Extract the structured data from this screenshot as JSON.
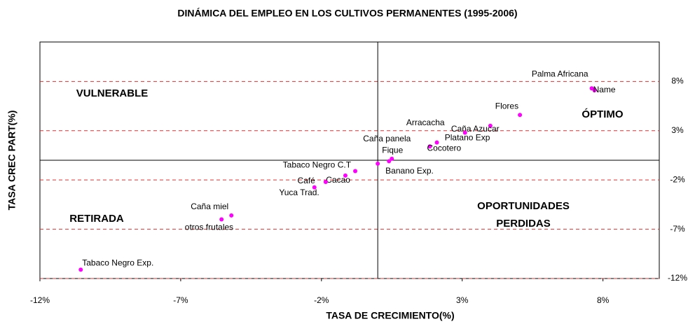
{
  "chart_data": {
    "type": "scatter",
    "title": "DINÁMICA DEL EMPLEO EN LOS CULTIVOS PERMANENTES (1995-2006)",
    "x_label": "TASA DE CRECIMIENTO(%)",
    "y_label": "TASA CREC PART(%)",
    "color": "#ff00ff",
    "grid_color": "#e03030",
    "point_labels": [
      "Palma Africana",
      "Name",
      "Flores",
      "Arracacha",
      "Caña Azucar",
      "Platano Exp",
      "Cocotero",
      "Caña panela",
      "Fique",
      "Banano Exp.",
      "Tabaco Negro C.T",
      "Cacao",
      "Café",
      "Yuca Trad.",
      "Caña miel",
      "otros frutales",
      "Tabaco Negro Exp."
    ],
    "x": [
      7.6,
      7.7,
      5.05,
      2.1,
      4.0,
      3.1,
      1.85,
      0.5,
      0.4,
      0.0,
      -0.8,
      -1.15,
      -1.85,
      -2.25,
      -5.2,
      -5.55,
      -10.55
    ],
    "values": [
      7.3,
      7.1,
      4.6,
      1.8,
      3.5,
      2.8,
      1.4,
      0.15,
      -0.1,
      -0.35,
      -1.1,
      -1.55,
      -2.2,
      -2.75,
      -5.6,
      -6.0,
      -11.1
    ],
    "annotations": [
      "VULNERABLE",
      "ÓPTIMO",
      "RETIRADA",
      "OPORTUNIDADES",
      "PERDIDAS"
    ],
    "xlim": [
      -12,
      10
    ],
    "ylim": [
      -12,
      12
    ],
    "xticks": [
      {
        "value": -12,
        "label": "-12%"
      },
      {
        "value": -7,
        "label": "-7%"
      },
      {
        "value": -2,
        "label": "-2%"
      },
      {
        "value": 3,
        "label": "3%"
      },
      {
        "value": 8,
        "label": "8%"
      }
    ],
    "yticks": [
      {
        "value": 8,
        "label": "8%"
      },
      {
        "value": 3,
        "label": "3%"
      },
      {
        "value": -2,
        "label": "-2%"
      },
      {
        "value": -7,
        "label": "-7%"
      },
      {
        "value": -12,
        "label": "-12%"
      }
    ],
    "grid": true
  }
}
